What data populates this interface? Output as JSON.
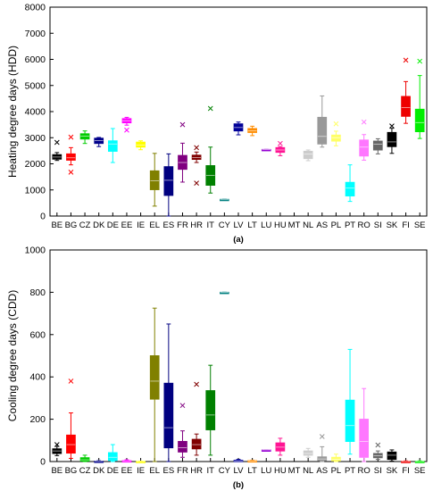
{
  "chart_data": [
    {
      "type": "box",
      "panel_label": "(a)",
      "ylabel": "Heating degree days (HDD)",
      "ylim": [
        0,
        8000
      ],
      "yticks": [
        0,
        1000,
        2000,
        3000,
        4000,
        5000,
        6000,
        7000,
        8000
      ],
      "grid": false,
      "categories": [
        "BE",
        "BG",
        "CZ",
        "DK",
        "DE",
        "EE",
        "IE",
        "EL",
        "ES",
        "FR",
        "HR",
        "IT",
        "CY",
        "LV",
        "LT",
        "LU",
        "HU",
        "MT",
        "NL",
        "AS",
        "PL",
        "PT",
        "RO",
        "SI",
        "SK",
        "FI",
        "SE"
      ],
      "colors": [
        "#000000",
        "#ff0000",
        "#00cc00",
        "#00008b",
        "#00ffff",
        "#ff00ff",
        "#ffff00",
        "#808000",
        "#000080",
        "#800080",
        "#800000",
        "#008000",
        "#008080",
        "#000099",
        "#ff8c00",
        "#9400d3",
        "#ff1493",
        "#777777",
        "#cccccc",
        "#999999",
        "#ffff66",
        "#00ffff",
        "#ff77ff",
        "#666666",
        "#000000",
        "#ee0000",
        "#00ee00"
      ],
      "boxes": [
        {
          "q1": 2180,
          "q3": 2350,
          "median": 2260,
          "min": 2130,
          "max": 2430,
          "outliers": [
            2820
          ]
        },
        {
          "q1": 2140,
          "q3": 2380,
          "median": 2230,
          "min": 1960,
          "max": 2620,
          "outliers": [
            1680,
            3020
          ]
        },
        {
          "q1": 2950,
          "q3": 3150,
          "median": 3060,
          "min": 2780,
          "max": 3260,
          "outliers": []
        },
        {
          "q1": 2780,
          "q3": 2980,
          "median": 2890,
          "min": 2660,
          "max": 3010,
          "outliers": []
        },
        {
          "q1": 2480,
          "q3": 2880,
          "median": 2760,
          "min": 2050,
          "max": 3350,
          "outliers": []
        },
        {
          "q1": 3570,
          "q3": 3730,
          "median": 3650,
          "min": 3480,
          "max": 3780,
          "outliers": [
            3290
          ]
        },
        {
          "q1": 2640,
          "q3": 2830,
          "median": 2720,
          "min": 2540,
          "max": 2880,
          "outliers": []
        },
        {
          "q1": 1010,
          "q3": 1730,
          "median": 1350,
          "min": 380,
          "max": 2400,
          "outliers": []
        },
        {
          "q1": 790,
          "q3": 1890,
          "median": 1370,
          "min": 0,
          "max": 2380,
          "outliers": []
        },
        {
          "q1": 1790,
          "q3": 2320,
          "median": 2050,
          "min": 1300,
          "max": 2790,
          "outliers": [
            3500
          ]
        },
        {
          "q1": 2170,
          "q3": 2330,
          "median": 2240,
          "min": 2050,
          "max": 2450,
          "outliers": [
            1260,
            2620
          ]
        },
        {
          "q1": 1180,
          "q3": 1930,
          "median": 1560,
          "min": 880,
          "max": 2640,
          "outliers": [
            4120
          ]
        },
        {
          "q1": 640,
          "q3": 640,
          "median": 640,
          "min": 640,
          "max": 640,
          "outliers": []
        },
        {
          "q1": 3260,
          "q3": 3530,
          "median": 3390,
          "min": 3110,
          "max": 3600,
          "outliers": []
        },
        {
          "q1": 3200,
          "q3": 3350,
          "median": 3260,
          "min": 3080,
          "max": 3440,
          "outliers": []
        },
        {
          "q1": 2550,
          "q3": 2550,
          "median": 2550,
          "min": 2550,
          "max": 2550,
          "outliers": []
        },
        {
          "q1": 2440,
          "q3": 2620,
          "median": 2530,
          "min": 2310,
          "max": 2660,
          "outliers": [
            2780
          ]
        },
        {
          "q1": null,
          "q3": null,
          "median": null,
          "min": null,
          "max": null,
          "outliers": []
        },
        {
          "q1": 2200,
          "q3": 2480,
          "median": 2370,
          "min": 2120,
          "max": 2530,
          "outliers": []
        },
        {
          "q1": 2760,
          "q3": 3780,
          "median": 3050,
          "min": 2640,
          "max": 4600,
          "outliers": []
        },
        {
          "q1": 2870,
          "q3": 3100,
          "median": 3000,
          "min": 2690,
          "max": 3250,
          "outliers": [
            3530
          ]
        },
        {
          "q1": 770,
          "q3": 1290,
          "median": 1070,
          "min": 560,
          "max": 1960,
          "outliers": []
        },
        {
          "q1": 2300,
          "q3": 2910,
          "median": 2640,
          "min": 2140,
          "max": 3120,
          "outliers": [
            3600
          ]
        },
        {
          "q1": 2530,
          "q3": 2870,
          "median": 2750,
          "min": 2380,
          "max": 2960,
          "outliers": []
        },
        {
          "q1": 2660,
          "q3": 3200,
          "median": 2840,
          "min": 2400,
          "max": 3360,
          "outliers": [
            3450
          ]
        },
        {
          "q1": 3820,
          "q3": 4580,
          "median": 4150,
          "min": 3550,
          "max": 5150,
          "outliers": [
            5970
          ]
        },
        {
          "q1": 3230,
          "q3": 4090,
          "median": 3580,
          "min": 2970,
          "max": 5380,
          "outliers": [
            5930
          ]
        }
      ]
    },
    {
      "type": "box",
      "panel_label": "(b)",
      "ylabel": "Cooling degree days (CDD)",
      "ylim": [
        0,
        1000
      ],
      "yticks": [
        0,
        200,
        400,
        600,
        800,
        1000
      ],
      "grid": false,
      "categories": [
        "BE",
        "BG",
        "CZ",
        "DK",
        "DE",
        "EE",
        "IE",
        "EL",
        "ES",
        "FR",
        "HR",
        "IT",
        "CY",
        "LV",
        "LT",
        "LU",
        "HU",
        "MT",
        "NL",
        "AS",
        "PL",
        "PT",
        "RO",
        "SI",
        "SK",
        "FI",
        "SE"
      ],
      "colors": [
        "#000000",
        "#ff0000",
        "#00cc00",
        "#00008b",
        "#00ffff",
        "#ff00ff",
        "#ffff00",
        "#808000",
        "#000080",
        "#800080",
        "#800000",
        "#008000",
        "#008080",
        "#000099",
        "#ff8c00",
        "#9400d3",
        "#ff1493",
        "#777777",
        "#cccccc",
        "#999999",
        "#ffff66",
        "#00ffff",
        "#ff77ff",
        "#666666",
        "#000000",
        "#ee0000",
        "#00ee00"
      ],
      "boxes": [
        {
          "q1": 38,
          "q3": 60,
          "median": 50,
          "min": 28,
          "max": 72,
          "outliers": [
            80
          ]
        },
        {
          "q1": 40,
          "q3": 125,
          "median": 80,
          "min": 15,
          "max": 230,
          "outliers": [
            380
          ]
        },
        {
          "q1": 2,
          "q3": 18,
          "median": 8,
          "min": 0,
          "max": 30,
          "outliers": []
        },
        {
          "q1": 0,
          "q3": 2,
          "median": 1,
          "min": 0,
          "max": 4,
          "outliers": []
        },
        {
          "q1": 5,
          "q3": 42,
          "median": 20,
          "min": 0,
          "max": 80,
          "outliers": []
        },
        {
          "q1": 0,
          "q3": 4,
          "median": 1,
          "min": 0,
          "max": 8,
          "outliers": []
        },
        {
          "q1": 0,
          "q3": 1,
          "median": 0,
          "min": 0,
          "max": 2,
          "outliers": []
        },
        {
          "q1": 295,
          "q3": 500,
          "median": 380,
          "min": 0,
          "max": 725,
          "outliers": []
        },
        {
          "q1": 65,
          "q3": 370,
          "median": 160,
          "min": 0,
          "max": 650,
          "outliers": []
        },
        {
          "q1": 45,
          "q3": 95,
          "median": 65,
          "min": 20,
          "max": 145,
          "outliers": [
            265
          ]
        },
        {
          "q1": 60,
          "q3": 105,
          "median": 80,
          "min": 30,
          "max": 130,
          "outliers": [
            365
          ]
        },
        {
          "q1": 150,
          "q3": 335,
          "median": 220,
          "min": 30,
          "max": 455,
          "outliers": []
        },
        {
          "q1": 800,
          "q3": 800,
          "median": 800,
          "min": 800,
          "max": 800,
          "outliers": []
        },
        {
          "q1": 1,
          "q3": 6,
          "median": 3,
          "min": 0,
          "max": 10,
          "outliers": []
        },
        {
          "q1": 1,
          "q3": 4,
          "median": 2,
          "min": 0,
          "max": 6,
          "outliers": []
        },
        {
          "q1": 55,
          "q3": 55,
          "median": 55,
          "min": 55,
          "max": 55,
          "outliers": []
        },
        {
          "q1": 50,
          "q3": 88,
          "median": 68,
          "min": 30,
          "max": 110,
          "outliers": []
        },
        {
          "q1": null,
          "q3": null,
          "median": null,
          "min": null,
          "max": null,
          "outliers": []
        },
        {
          "q1": 30,
          "q3": 50,
          "median": 38,
          "min": 20,
          "max": 62,
          "outliers": []
        },
        {
          "q1": 5,
          "q3": 22,
          "median": 12,
          "min": 0,
          "max": 70,
          "outliers": [
            118
          ]
        },
        {
          "q1": 3,
          "q3": 20,
          "median": 10,
          "min": 0,
          "max": 35,
          "outliers": []
        },
        {
          "q1": 95,
          "q3": 290,
          "median": 170,
          "min": 35,
          "max": 530,
          "outliers": []
        },
        {
          "q1": 20,
          "q3": 200,
          "median": 95,
          "min": 0,
          "max": 345,
          "outliers": []
        },
        {
          "q1": 18,
          "q3": 38,
          "median": 28,
          "min": 10,
          "max": 50,
          "outliers": [
            78
          ]
        },
        {
          "q1": 10,
          "q3": 45,
          "median": 30,
          "min": 2,
          "max": 55,
          "outliers": []
        },
        {
          "q1": 0,
          "q3": 1,
          "median": 0,
          "min": 0,
          "max": 3,
          "outliers": []
        },
        {
          "q1": 0,
          "q3": 1,
          "median": 0,
          "min": 0,
          "max": 3,
          "outliers": []
        }
      ]
    }
  ]
}
